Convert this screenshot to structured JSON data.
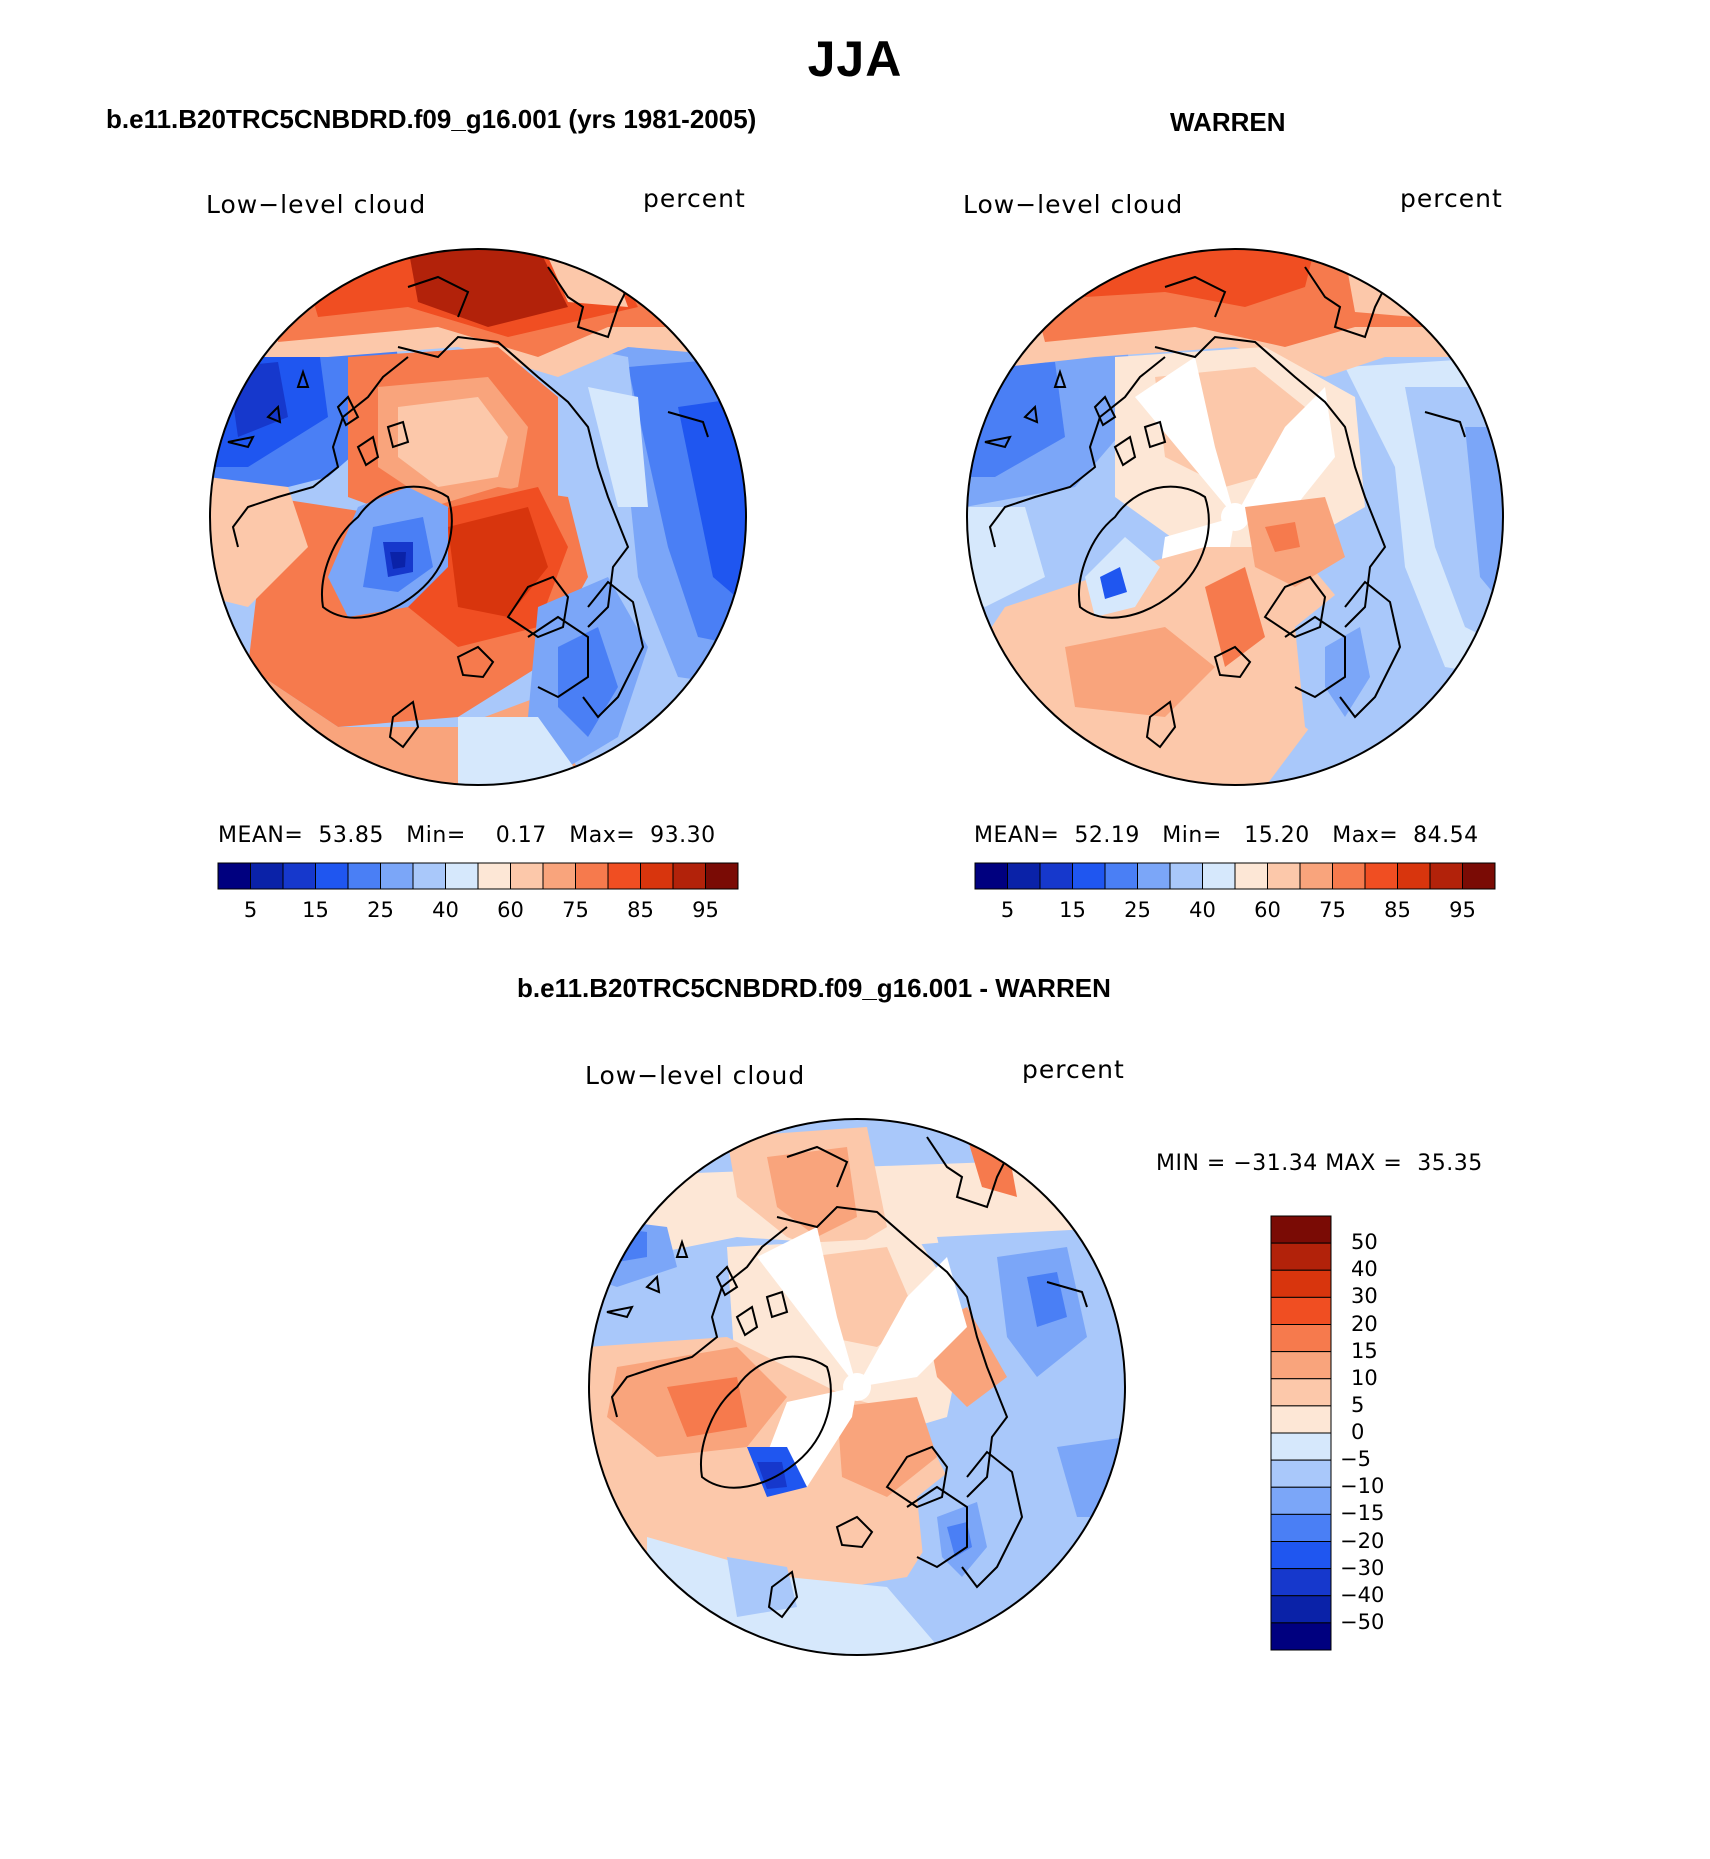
{
  "title": "JJA",
  "panels": [
    {
      "subtitle": "b.e11.B20TRC5CNBDRD.f09_g16.001 (yrs 1981-2005)",
      "variable": "Low−level cloud",
      "units": "percent",
      "stats": {
        "mean_label": "MEAN=",
        "mean": "53.85",
        "min_label": "Min=",
        "min": "0.17",
        "max_label": "Max=",
        "max": "93.30"
      }
    },
    {
      "subtitle": "WARREN",
      "variable": "Low−level cloud",
      "units": "percent",
      "stats": {
        "mean_label": "MEAN=",
        "mean": "52.19",
        "min_label": "Min=",
        "min": "15.20",
        "max_label": "Max=",
        "max": "84.54"
      }
    },
    {
      "subtitle": "b.e11.B20TRC5CNBDRD.f09_g16.001 - WARREN",
      "variable": "Low−level cloud",
      "units": "percent",
      "minmax": "MIN = −31.34 MAX =  35.35"
    }
  ],
  "colorbar_abs": {
    "colors": [
      "#00007f",
      "#0a22a8",
      "#1638cc",
      "#1f56f0",
      "#4a7ff5",
      "#7ba6f8",
      "#a9c8fa",
      "#d6e8fc",
      "#fde7d6",
      "#fcc8aa",
      "#f9a47c",
      "#f67a4d",
      "#f04e22",
      "#d8350d",
      "#b2220a",
      "#7a0b05"
    ],
    "tick_labels": [
      "5",
      "15",
      "25",
      "40",
      "60",
      "75",
      "85",
      "95"
    ]
  },
  "colorbar_diff": {
    "colors": [
      "#00007f",
      "#0a22a8",
      "#1638cc",
      "#1f56f0",
      "#4a7ff5",
      "#7ba6f8",
      "#a9c8fa",
      "#d6e8fc",
      "#fde7d6",
      "#fcc8aa",
      "#f9a47c",
      "#f67a4d",
      "#f04e22",
      "#d8350d",
      "#b2220a",
      "#7a0b05"
    ],
    "tick_labels": [
      "50",
      "40",
      "30",
      "20",
      "15",
      "10",
      "5",
      "0",
      "−5",
      "−10",
      "−15",
      "−20",
      "−30",
      "−40",
      "−50"
    ]
  }
}
